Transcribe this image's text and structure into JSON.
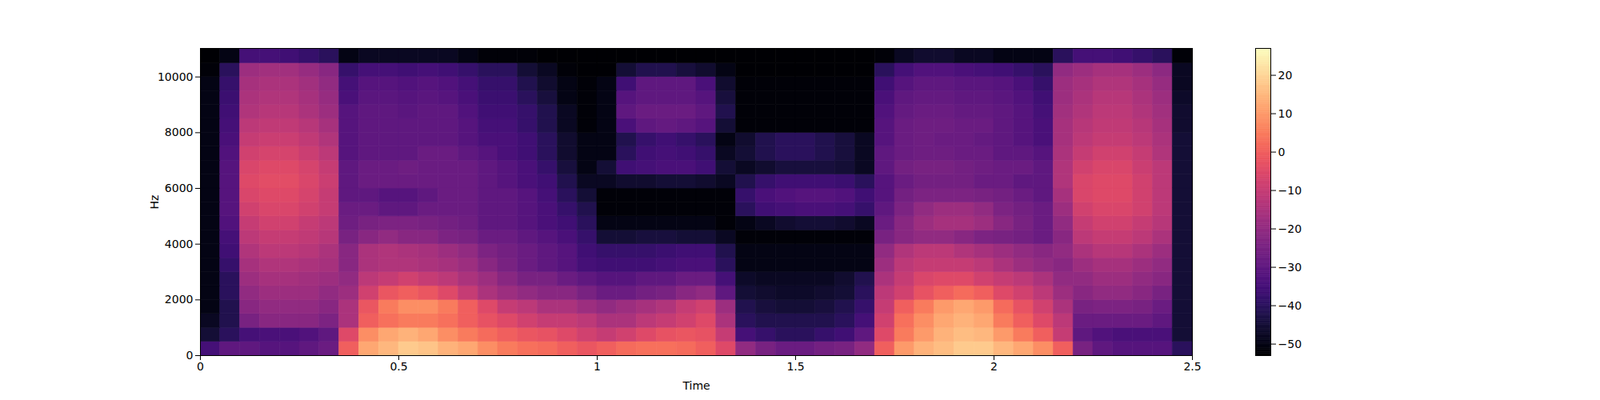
{
  "chart_data": {
    "type": "heatmap",
    "xlabel": "Time",
    "ylabel": "Hz",
    "xlim": [
      0,
      2.5
    ],
    "xticks": [
      0,
      0.5,
      1,
      1.5,
      2,
      2.5
    ],
    "ylim": [
      0,
      11025
    ],
    "yticks": [
      0,
      2000,
      4000,
      6000,
      8000,
      10000
    ],
    "x_edges": [
      0,
      0.05,
      0.1,
      0.15,
      0.2,
      0.25,
      0.3,
      0.35,
      0.4,
      0.45,
      0.5,
      0.55,
      0.6,
      0.65,
      0.7,
      0.75,
      0.8,
      0.85,
      0.9,
      0.95,
      1,
      1.05,
      1.1,
      1.15,
      1.2,
      1.25,
      1.3,
      1.35,
      1.4,
      1.45,
      1.5,
      1.55,
      1.6,
      1.65,
      1.7,
      1.75,
      1.8,
      1.85,
      1.9,
      1.95,
      2,
      2.05,
      2.1,
      2.15,
      2.2,
      2.25,
      2.3,
      2.35,
      2.4,
      2.45,
      2.5
    ],
    "y_edges": [
      0,
      500,
      1000,
      1500,
      2000,
      2500,
      3000,
      3500,
      4000,
      4500,
      5000,
      5500,
      6000,
      6500,
      7000,
      7500,
      8000,
      8500,
      9000,
      9500,
      10000,
      10500,
      11025
    ],
    "cells": [
      [
        -35,
        -30,
        -30,
        -32,
        -32,
        -30,
        -28,
        0,
        12,
        15,
        18,
        17,
        14,
        12,
        8,
        5,
        3,
        2,
        0,
        -2,
        0,
        2,
        3,
        3,
        2,
        0,
        -5,
        -20,
        -25,
        -28,
        -28,
        -26,
        -25,
        -20,
        0,
        10,
        14,
        16,
        18,
        18,
        15,
        12,
        8,
        0,
        -25,
        -30,
        -32,
        -32,
        -32,
        -40
      ],
      [
        -45,
        -40,
        -35,
        -34,
        -34,
        -33,
        -30,
        -5,
        8,
        12,
        14,
        12,
        8,
        5,
        2,
        0,
        -2,
        -3,
        -5,
        -8,
        -10,
        -8,
        -5,
        -3,
        -2,
        -3,
        -10,
        -35,
        -38,
        -40,
        -40,
        -38,
        -36,
        -30,
        -5,
        5,
        10,
        14,
        16,
        15,
        10,
        5,
        0,
        -10,
        -30,
        -33,
        -34,
        -34,
        -34,
        -45
      ],
      [
        -48,
        -42,
        -25,
        -22,
        -22,
        -22,
        -24,
        -15,
        0,
        3,
        5,
        5,
        3,
        0,
        -3,
        -5,
        -8,
        -10,
        -10,
        -12,
        -15,
        -15,
        -12,
        -10,
        -8,
        -5,
        -15,
        -40,
        -42,
        -42,
        -42,
        -42,
        -40,
        -35,
        -8,
        3,
        8,
        12,
        14,
        12,
        5,
        0,
        -5,
        -12,
        -28,
        -28,
        -28,
        -28,
        -30,
        -45
      ],
      [
        -50,
        -42,
        -22,
        -20,
        -20,
        -20,
        -22,
        -15,
        -2,
        5,
        8,
        8,
        5,
        0,
        -5,
        -10,
        -12,
        -15,
        -15,
        -18,
        -20,
        -18,
        -16,
        -14,
        -10,
        -8,
        -18,
        -42,
        -44,
        -45,
        -45,
        -44,
        -42,
        -38,
        -10,
        0,
        5,
        10,
        12,
        10,
        2,
        -3,
        -8,
        -15,
        -25,
        -24,
        -24,
        -25,
        -28,
        -45
      ],
      [
        -50,
        -40,
        -20,
        -18,
        -18,
        -18,
        -20,
        -18,
        -8,
        -2,
        0,
        -2,
        -5,
        -10,
        -15,
        -18,
        -20,
        -22,
        -22,
        -25,
        -28,
        -28,
        -26,
        -25,
        -22,
        -20,
        -30,
        -45,
        -46,
        -47,
        -47,
        -46,
        -45,
        -40,
        -12,
        -8,
        -3,
        0,
        2,
        0,
        -5,
        -8,
        -12,
        -18,
        -22,
        -20,
        -20,
        -22,
        -25,
        -45
      ],
      [
        -50,
        -40,
        -18,
        -16,
        -16,
        -17,
        -18,
        -20,
        -12,
        -10,
        -8,
        -10,
        -12,
        -15,
        -18,
        -22,
        -25,
        -25,
        -28,
        -30,
        -32,
        -32,
        -30,
        -30,
        -28,
        -28,
        -35,
        -47,
        -48,
        -48,
        -48,
        -48,
        -46,
        -42,
        -15,
        -10,
        -6,
        -5,
        -5,
        -8,
        -10,
        -12,
        -15,
        -20,
        -20,
        -18,
        -18,
        -20,
        -22,
        -45
      ],
      [
        -50,
        -38,
        -16,
        -14,
        -14,
        -15,
        -16,
        -22,
        -15,
        -14,
        -14,
        -15,
        -16,
        -18,
        -22,
        -25,
        -28,
        -30,
        -32,
        -35,
        -36,
        -36,
        -36,
        -35,
        -34,
        -34,
        -40,
        -50,
        -50,
        -50,
        -50,
        -50,
        -50,
        -50,
        -18,
        -12,
        -10,
        -10,
        -10,
        -12,
        -15,
        -18,
        -20,
        -22,
        -18,
        -16,
        -16,
        -18,
        -20,
        -45
      ],
      [
        -50,
        -36,
        -14,
        -12,
        -12,
        -13,
        -15,
        -22,
        -15,
        -14,
        -15,
        -16,
        -18,
        -20,
        -24,
        -26,
        -28,
        -30,
        -32,
        -36,
        -38,
        -38,
        -38,
        -37,
        -36,
        -36,
        -42,
        -50,
        -50,
        -50,
        -50,
        -50,
        -50,
        -50,
        -20,
        -14,
        -12,
        -12,
        -14,
        -16,
        -18,
        -20,
        -22,
        -20,
        -15,
        -13,
        -13,
        -15,
        -18,
        -45
      ],
      [
        -50,
        -35,
        -12,
        -10,
        -10,
        -11,
        -13,
        -25,
        -22,
        -20,
        -22,
        -22,
        -24,
        -25,
        -28,
        -28,
        -30,
        -32,
        -34,
        -38,
        -45,
        -45,
        -44,
        -44,
        -45,
        -45,
        -48,
        -52,
        -52,
        -52,
        -52,
        -52,
        -52,
        -52,
        -25,
        -22,
        -20,
        -20,
        -22,
        -24,
        -25,
        -26,
        -28,
        -22,
        -12,
        -10,
        -10,
        -12,
        -15,
        -45
      ],
      [
        -50,
        -33,
        -10,
        -8,
        -8,
        -10,
        -12,
        -27,
        -25,
        -24,
        -24,
        -25,
        -26,
        -27,
        -30,
        -30,
        -32,
        -34,
        -36,
        -40,
        -50,
        -50,
        -50,
        -50,
        -50,
        -50,
        -52,
        -50,
        -48,
        -46,
        -45,
        -45,
        -46,
        -48,
        -28,
        -22,
        -18,
        -16,
        -16,
        -18,
        -22,
        -25,
        -28,
        -20,
        -10,
        -8,
        -8,
        -10,
        -13,
        -45
      ],
      [
        -50,
        -32,
        -8,
        -6,
        -6,
        -8,
        -10,
        -28,
        -28,
        -30,
        -30,
        -28,
        -28,
        -28,
        -30,
        -30,
        -32,
        -34,
        -38,
        -42,
        -52,
        -52,
        -52,
        -52,
        -52,
        -52,
        -52,
        -40,
        -36,
        -35,
        -34,
        -34,
        -35,
        -38,
        -30,
        -24,
        -20,
        -18,
        -18,
        -20,
        -24,
        -26,
        -28,
        -18,
        -8,
        -6,
        -6,
        -8,
        -12,
        -45
      ],
      [
        -50,
        -32,
        -6,
        -5,
        -5,
        -7,
        -10,
        -30,
        -30,
        -32,
        -32,
        -30,
        -28,
        -28,
        -30,
        -30,
        -32,
        -35,
        -40,
        -45,
        -52,
        -52,
        -52,
        -52,
        -52,
        -52,
        -52,
        -38,
        -34,
        -33,
        -32,
        -32,
        -33,
        -36,
        -32,
        -26,
        -24,
        -24,
        -24,
        -25,
        -26,
        -28,
        -30,
        -16,
        -6,
        -5,
        -5,
        -8,
        -12,
        -45
      ],
      [
        -50,
        -32,
        -5,
        -4,
        -4,
        -6,
        -9,
        -30,
        -28,
        -28,
        -28,
        -28,
        -28,
        -28,
        -30,
        -32,
        -34,
        -36,
        -42,
        -48,
        -48,
        -46,
        -46,
        -45,
        -45,
        -46,
        -48,
        -42,
        -38,
        -36,
        -36,
        -36,
        -37,
        -40,
        -32,
        -28,
        -26,
        -26,
        -26,
        -28,
        -28,
        -30,
        -30,
        -14,
        -6,
        -5,
        -5,
        -8,
        -12,
        -45
      ],
      [
        -50,
        -32,
        -6,
        -5,
        -5,
        -7,
        -10,
        -30,
        -28,
        -28,
        -27,
        -28,
        -28,
        -28,
        -30,
        -32,
        -34,
        -38,
        -44,
        -50,
        -45,
        -36,
        -35,
        -34,
        -34,
        -36,
        -45,
        -48,
        -46,
        -44,
        -44,
        -44,
        -45,
        -48,
        -30,
        -26,
        -25,
        -25,
        -26,
        -27,
        -28,
        -28,
        -30,
        -14,
        -8,
        -6,
        -6,
        -9,
        -12,
        -45
      ],
      [
        -50,
        -33,
        -8,
        -7,
        -7,
        -9,
        -12,
        -32,
        -30,
        -30,
        -30,
        -28,
        -28,
        -30,
        -32,
        -34,
        -36,
        -40,
        -46,
        -50,
        -50,
        -40,
        -36,
        -35,
        -36,
        -38,
        -48,
        -45,
        -42,
        -40,
        -40,
        -42,
        -44,
        -48,
        -30,
        -28,
        -27,
        -27,
        -28,
        -28,
        -30,
        -30,
        -32,
        -15,
        -10,
        -8,
        -8,
        -10,
        -14,
        -45
      ],
      [
        -50,
        -34,
        -10,
        -9,
        -9,
        -11,
        -14,
        -32,
        -30,
        -30,
        -30,
        -30,
        -30,
        -32,
        -34,
        -34,
        -36,
        -40,
        -46,
        -50,
        -50,
        -42,
        -38,
        -36,
        -38,
        -40,
        -50,
        -46,
        -42,
        -40,
        -40,
        -42,
        -44,
        -48,
        -32,
        -28,
        -27,
        -28,
        -28,
        -29,
        -30,
        -32,
        -34,
        -16,
        -12,
        -10,
        -10,
        -12,
        -15,
        -45
      ],
      [
        -50,
        -35,
        -12,
        -11,
        -11,
        -13,
        -16,
        -32,
        -30,
        -30,
        -30,
        -30,
        -30,
        -32,
        -35,
        -35,
        -38,
        -42,
        -48,
        -52,
        -50,
        -34,
        -30,
        -29,
        -30,
        -32,
        -45,
        -52,
        -52,
        -52,
        -52,
        -52,
        -52,
        -52,
        -32,
        -28,
        -27,
        -27,
        -28,
        -28,
        -30,
        -32,
        -34,
        -16,
        -13,
        -11,
        -11,
        -13,
        -16,
        -46
      ],
      [
        -50,
        -36,
        -14,
        -13,
        -13,
        -15,
        -18,
        -32,
        -30,
        -30,
        -31,
        -30,
        -30,
        -33,
        -36,
        -36,
        -38,
        -42,
        -48,
        -52,
        -50,
        -30,
        -28,
        -28,
        -28,
        -30,
        -42,
        -52,
        -52,
        -52,
        -52,
        -52,
        -52,
        -52,
        -33,
        -29,
        -28,
        -28,
        -29,
        -29,
        -30,
        -32,
        -35,
        -17,
        -14,
        -12,
        -12,
        -14,
        -17,
        -46
      ],
      [
        -50,
        -37,
        -15,
        -14,
        -14,
        -16,
        -19,
        -34,
        -31,
        -31,
        -32,
        -31,
        -32,
        -34,
        -37,
        -37,
        -40,
        -44,
        -50,
        -52,
        -50,
        -32,
        -30,
        -30,
        -30,
        -32,
        -44,
        -52,
        -52,
        -52,
        -52,
        -52,
        -52,
        -52,
        -34,
        -30,
        -29,
        -29,
        -30,
        -30,
        -31,
        -33,
        -36,
        -18,
        -15,
        -13,
        -13,
        -15,
        -18,
        -47
      ],
      [
        -50,
        -38,
        -16,
        -15,
        -15,
        -17,
        -20,
        -35,
        -32,
        -32,
        -33,
        -32,
        -33,
        -35,
        -38,
        -38,
        -42,
        -46,
        -50,
        -52,
        -50,
        -36,
        -30,
        -30,
        -30,
        -34,
        -46,
        -52,
        -52,
        -52,
        -52,
        -52,
        -52,
        -52,
        -36,
        -32,
        -30,
        -30,
        -31,
        -31,
        -32,
        -34,
        -38,
        -18,
        -16,
        -14,
        -14,
        -16,
        -19,
        -48
      ],
      [
        -52,
        -40,
        -18,
        -17,
        -17,
        -19,
        -22,
        -38,
        -35,
        -35,
        -36,
        -35,
        -36,
        -38,
        -40,
        -40,
        -45,
        -48,
        -52,
        -53,
        -53,
        -45,
        -42,
        -42,
        -44,
        -46,
        -50,
        -53,
        -53,
        -53,
        -53,
        -53,
        -53,
        -53,
        -40,
        -35,
        -33,
        -33,
        -34,
        -35,
        -36,
        -38,
        -40,
        -20,
        -18,
        -16,
        -16,
        -18,
        -21,
        -48
      ],
      [
        -53,
        -50,
        -35,
        -35,
        -36,
        -38,
        -40,
        -50,
        -48,
        -48,
        -48,
        -48,
        -48,
        -50,
        -52,
        -52,
        -52,
        -53,
        -53,
        -53,
        -53,
        -53,
        -53,
        -53,
        -53,
        -53,
        -53,
        -53,
        -53,
        -53,
        -53,
        -53,
        -53,
        -53,
        -52,
        -48,
        -46,
        -46,
        -48,
        -48,
        -50,
        -50,
        -50,
        -40,
        -35,
        -35,
        -36,
        -38,
        -40,
        -52
      ]
    ],
    "colorbar": {
      "range": [
        -53,
        27
      ],
      "ticks": [
        {
          "value": -50,
          "label": "−50"
        },
        {
          "value": -40,
          "label": "−40"
        },
        {
          "value": -30,
          "label": "−30"
        },
        {
          "value": -20,
          "label": "−20"
        },
        {
          "value": -10,
          "label": "−10"
        },
        0,
        10,
        20
      ],
      "color": "magma"
    }
  }
}
